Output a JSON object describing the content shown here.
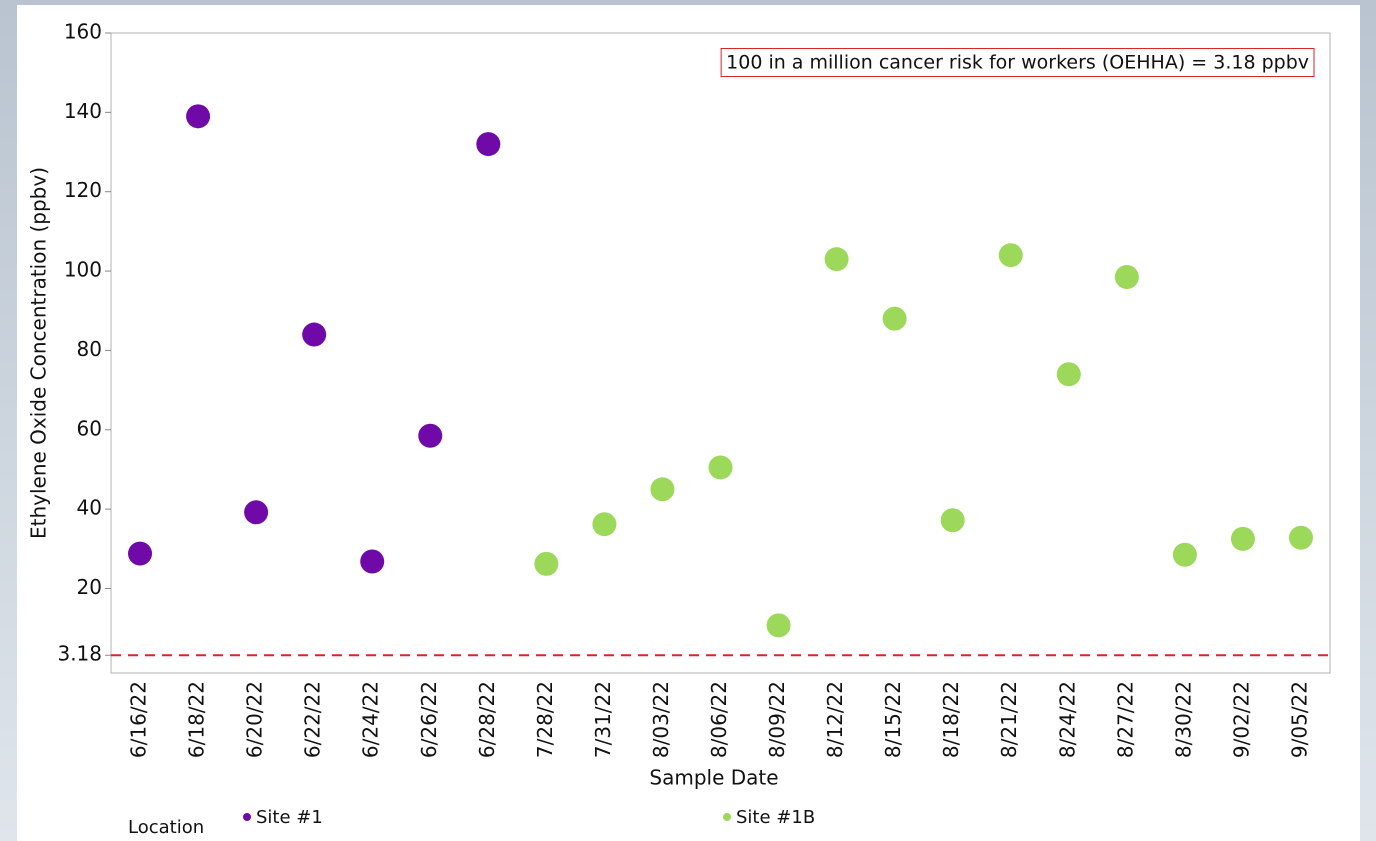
{
  "chart_data": {
    "type": "scatter",
    "x_label": "Sample Date",
    "y_label": "Ethylene Oxide Concentration (ppbv)",
    "categories": [
      "6/16/22",
      "6/18/22",
      "6/20/22",
      "6/22/22",
      "6/24/22",
      "6/26/22",
      "6/28/22",
      "7/28/22",
      "7/31/22",
      "8/03/22",
      "8/06/22",
      "8/09/22",
      "8/12/22",
      "8/15/22",
      "8/18/22",
      "8/21/22",
      "8/24/22",
      "8/27/22",
      "8/30/22",
      "9/02/22",
      "9/05/22"
    ],
    "series": [
      {
        "name": "Site #1",
        "color": "#6f0aa8",
        "values": [
          28.8,
          139,
          39.2,
          84,
          26.8,
          58.5,
          132,
          null,
          null,
          null,
          null,
          null,
          null,
          null,
          null,
          null,
          null,
          null,
          null,
          null,
          null
        ]
      },
      {
        "name": "Site #1B",
        "color": "#9cd85a",
        "values": [
          null,
          null,
          null,
          null,
          null,
          null,
          null,
          26.2,
          36.2,
          45,
          50.5,
          10.7,
          103,
          88,
          37.2,
          104,
          74,
          98.5,
          28.5,
          32.5,
          32.8
        ]
      }
    ],
    "ylim": [
      -1.3,
      160
    ],
    "yticks": [
      20,
      40,
      60,
      80,
      100,
      120,
      140,
      160
    ],
    "reference_line": {
      "value": 3.18,
      "label": "3.18",
      "color": "#d62728",
      "annotation": "100 in a million cancer risk for workers (OEHHA) = 3.18 ppbv"
    },
    "legend_title": "Location"
  }
}
